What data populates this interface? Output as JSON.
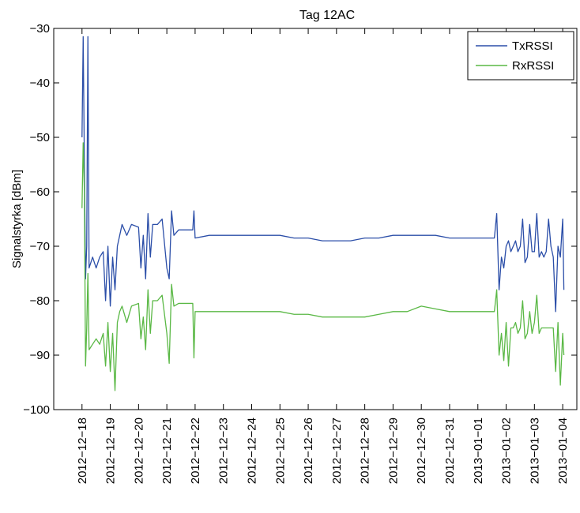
{
  "chart_data": {
    "type": "line",
    "title": "Tag 12AC",
    "xlabel": "",
    "ylabel": "Signalstyrka [dBm]",
    "ylim": [
      -100,
      -30
    ],
    "yticks": [
      -30,
      -40,
      -50,
      -60,
      -70,
      -80,
      -90,
      -100
    ],
    "ytick_labels": [
      "−30",
      "−40",
      "−50",
      "−60",
      "−70",
      "−80",
      "−90",
      "−100"
    ],
    "x_axis_type": "date",
    "xlim": [
      "2012-12-17T00:00",
      "2013-01-04T12:00"
    ],
    "xticks": [
      "2012-12-18",
      "2012-12-19",
      "2012-12-20",
      "2012-12-21",
      "2012-12-22",
      "2012-12-23",
      "2012-12-24",
      "2012-12-25",
      "2012-12-26",
      "2012-12-27",
      "2012-12-28",
      "2012-12-29",
      "2012-12-30",
      "2012-12-31",
      "2013-01-01",
      "2013-01-02",
      "2013-01-03",
      "2013-01-04"
    ],
    "xtick_labels": [
      "2012−12−18",
      "2012−12−19",
      "2012−12−20",
      "2012−12−21",
      "2012−12−22",
      "2012−12−23",
      "2012−12−24",
      "2012−12−25",
      "2012−12−26",
      "2012−12−27",
      "2012−12−28",
      "2012−12−29",
      "2012−12−30",
      "2012−12−31",
      "2013−01−01",
      "2013−01−02",
      "2013−01−03",
      "2013−01−04"
    ],
    "grid": false,
    "legend_position": "top-right",
    "series": [
      {
        "name": "TxRSSI",
        "color": "#2b4ea8",
        "points": [
          [
            "2012-12-18T00:00",
            -50
          ],
          [
            "2012-12-18T01:00",
            -31.5
          ],
          [
            "2012-12-18T02:00",
            -55
          ],
          [
            "2012-12-18T03:00",
            -76
          ],
          [
            "2012-12-18T04:00",
            -70
          ],
          [
            "2012-12-18T05:00",
            -31.5
          ],
          [
            "2012-12-18T06:00",
            -74
          ],
          [
            "2012-12-18T09:00",
            -72
          ],
          [
            "2012-12-18T12:00",
            -74
          ],
          [
            "2012-12-18T15:00",
            -72
          ],
          [
            "2012-12-18T18:00",
            -71
          ],
          [
            "2012-12-18T20:00",
            -80
          ],
          [
            "2012-12-18T22:00",
            -70
          ],
          [
            "2012-12-19T00:00",
            -81
          ],
          [
            "2012-12-19T02:00",
            -72
          ],
          [
            "2012-12-19T04:00",
            -78
          ],
          [
            "2012-12-19T06:00",
            -70
          ],
          [
            "2012-12-19T08:00",
            -68
          ],
          [
            "2012-12-19T10:00",
            -66
          ],
          [
            "2012-12-19T14:00",
            -68
          ],
          [
            "2012-12-19T18:00",
            -66
          ],
          [
            "2012-12-20T00:00",
            -66.5
          ],
          [
            "2012-12-20T02:00",
            -74
          ],
          [
            "2012-12-20T04:00",
            -68
          ],
          [
            "2012-12-20T06:00",
            -76
          ],
          [
            "2012-12-20T08:00",
            -64
          ],
          [
            "2012-12-20T10:00",
            -72
          ],
          [
            "2012-12-20T12:00",
            -66
          ],
          [
            "2012-12-20T16:00",
            -66
          ],
          [
            "2012-12-20T20:00",
            -65
          ],
          [
            "2012-12-21T00:00",
            -74
          ],
          [
            "2012-12-21T02:00",
            -76
          ],
          [
            "2012-12-21T04:00",
            -63.5
          ],
          [
            "2012-12-21T06:00",
            -68
          ],
          [
            "2012-12-21T10:00",
            -67
          ],
          [
            "2012-12-21T16:00",
            -67
          ],
          [
            "2012-12-21T22:00",
            -67
          ],
          [
            "2012-12-21T23:00",
            -63.5
          ],
          [
            "2012-12-22T00:00",
            -68.5
          ],
          [
            "2012-12-22T12:00",
            -68
          ],
          [
            "2012-12-23T00:00",
            -68
          ],
          [
            "2012-12-24T00:00",
            -68
          ],
          [
            "2012-12-25T00:00",
            -68
          ],
          [
            "2012-12-25T12:00",
            -68.5
          ],
          [
            "2012-12-26T00:00",
            -68.5
          ],
          [
            "2012-12-26T12:00",
            -69
          ],
          [
            "2012-12-27T00:00",
            -69
          ],
          [
            "2012-12-27T12:00",
            -69
          ],
          [
            "2012-12-28T00:00",
            -68.5
          ],
          [
            "2012-12-28T12:00",
            -68.5
          ],
          [
            "2012-12-29T00:00",
            -68
          ],
          [
            "2012-12-29T12:00",
            -68
          ],
          [
            "2012-12-30T00:00",
            -68
          ],
          [
            "2012-12-30T12:00",
            -68
          ],
          [
            "2012-12-31T00:00",
            -68.5
          ],
          [
            "2012-12-31T12:00",
            -68.5
          ],
          [
            "2013-01-01T00:00",
            -68.5
          ],
          [
            "2013-01-01T10:00",
            -68.5
          ],
          [
            "2013-01-01T14:00",
            -68.5
          ],
          [
            "2013-01-01T16:00",
            -64
          ],
          [
            "2013-01-01T18:00",
            -78
          ],
          [
            "2013-01-01T20:00",
            -72
          ],
          [
            "2013-01-01T22:00",
            -74
          ],
          [
            "2013-01-02T00:00",
            -70
          ],
          [
            "2013-01-02T02:00",
            -69
          ],
          [
            "2013-01-02T04:00",
            -71
          ],
          [
            "2013-01-02T06:00",
            -70
          ],
          [
            "2013-01-02T08:00",
            -69
          ],
          [
            "2013-01-02T10:00",
            -71
          ],
          [
            "2013-01-02T12:00",
            -70
          ],
          [
            "2013-01-02T14:00",
            -65
          ],
          [
            "2013-01-02T16:00",
            -73
          ],
          [
            "2013-01-02T18:00",
            -72
          ],
          [
            "2013-01-02T20:00",
            -66
          ],
          [
            "2013-01-02T22:00",
            -71
          ],
          [
            "2013-01-03T00:00",
            -71
          ],
          [
            "2013-01-03T02:00",
            -64
          ],
          [
            "2013-01-03T04:00",
            -72
          ],
          [
            "2013-01-03T06:00",
            -71
          ],
          [
            "2013-01-03T08:00",
            -72
          ],
          [
            "2013-01-03T10:00",
            -71
          ],
          [
            "2013-01-03T12:00",
            -65
          ],
          [
            "2013-01-03T14:00",
            -70
          ],
          [
            "2013-01-03T16:00",
            -72
          ],
          [
            "2013-01-03T18:00",
            -82
          ],
          [
            "2013-01-03T20:00",
            -70
          ],
          [
            "2013-01-03T22:00",
            -72
          ],
          [
            "2013-01-04T00:00",
            -65
          ],
          [
            "2013-01-04T01:00",
            -78
          ]
        ]
      },
      {
        "name": "RxRSSI",
        "color": "#5ab845",
        "points": [
          [
            "2012-12-18T00:00",
            -63
          ],
          [
            "2012-12-18T01:00",
            -51
          ],
          [
            "2012-12-18T02:00",
            -60
          ],
          [
            "2012-12-18T03:00",
            -92
          ],
          [
            "2012-12-18T04:00",
            -85
          ],
          [
            "2012-12-18T05:00",
            -75
          ],
          [
            "2012-12-18T06:00",
            -89
          ],
          [
            "2012-12-18T09:00",
            -88
          ],
          [
            "2012-12-18T12:00",
            -87
          ],
          [
            "2012-12-18T15:00",
            -88
          ],
          [
            "2012-12-18T18:00",
            -86
          ],
          [
            "2012-12-18T20:00",
            -92
          ],
          [
            "2012-12-18T22:00",
            -84
          ],
          [
            "2012-12-19T00:00",
            -93
          ],
          [
            "2012-12-19T02:00",
            -86
          ],
          [
            "2012-12-19T04:00",
            -96.5
          ],
          [
            "2012-12-19T06:00",
            -84
          ],
          [
            "2012-12-19T08:00",
            -82
          ],
          [
            "2012-12-19T10:00",
            -81
          ],
          [
            "2012-12-19T14:00",
            -84
          ],
          [
            "2012-12-19T18:00",
            -81
          ],
          [
            "2012-12-20T00:00",
            -80.5
          ],
          [
            "2012-12-20T02:00",
            -87
          ],
          [
            "2012-12-20T04:00",
            -83
          ],
          [
            "2012-12-20T06:00",
            -89
          ],
          [
            "2012-12-20T08:00",
            -78
          ],
          [
            "2012-12-20T10:00",
            -86
          ],
          [
            "2012-12-20T12:00",
            -80
          ],
          [
            "2012-12-20T16:00",
            -80
          ],
          [
            "2012-12-20T20:00",
            -79
          ],
          [
            "2012-12-21T00:00",
            -86
          ],
          [
            "2012-12-21T02:00",
            -91.5
          ],
          [
            "2012-12-21T04:00",
            -77
          ],
          [
            "2012-12-21T06:00",
            -81
          ],
          [
            "2012-12-21T10:00",
            -80.5
          ],
          [
            "2012-12-21T16:00",
            -80.5
          ],
          [
            "2012-12-21T22:00",
            -80.5
          ],
          [
            "2012-12-21T23:00",
            -90.5
          ],
          [
            "2012-12-22T00:00",
            -82
          ],
          [
            "2012-12-22T12:00",
            -82
          ],
          [
            "2012-12-23T00:00",
            -82
          ],
          [
            "2012-12-24T00:00",
            -82
          ],
          [
            "2012-12-25T00:00",
            -82
          ],
          [
            "2012-12-25T12:00",
            -82.5
          ],
          [
            "2012-12-26T00:00",
            -82.5
          ],
          [
            "2012-12-26T12:00",
            -83
          ],
          [
            "2012-12-27T00:00",
            -83
          ],
          [
            "2012-12-27T12:00",
            -83
          ],
          [
            "2012-12-28T00:00",
            -83
          ],
          [
            "2012-12-28T12:00",
            -82.5
          ],
          [
            "2012-12-29T00:00",
            -82
          ],
          [
            "2012-12-29T12:00",
            -82
          ],
          [
            "2012-12-30T00:00",
            -81
          ],
          [
            "2012-12-30T12:00",
            -81.5
          ],
          [
            "2012-12-31T00:00",
            -82
          ],
          [
            "2012-12-31T12:00",
            -82
          ],
          [
            "2013-01-01T00:00",
            -82
          ],
          [
            "2013-01-01T10:00",
            -82
          ],
          [
            "2013-01-01T14:00",
            -82
          ],
          [
            "2013-01-01T16:00",
            -78
          ],
          [
            "2013-01-01T18:00",
            -90
          ],
          [
            "2013-01-01T20:00",
            -86
          ],
          [
            "2013-01-01T22:00",
            -91
          ],
          [
            "2013-01-02T00:00",
            -84
          ],
          [
            "2013-01-02T02:00",
            -92
          ],
          [
            "2013-01-02T04:00",
            -85
          ],
          [
            "2013-01-02T06:00",
            -85
          ],
          [
            "2013-01-02T08:00",
            -84
          ],
          [
            "2013-01-02T10:00",
            -86
          ],
          [
            "2013-01-02T12:00",
            -85
          ],
          [
            "2013-01-02T14:00",
            -80
          ],
          [
            "2013-01-02T16:00",
            -87
          ],
          [
            "2013-01-02T18:00",
            -86
          ],
          [
            "2013-01-02T20:00",
            -82
          ],
          [
            "2013-01-02T22:00",
            -86
          ],
          [
            "2013-01-03T00:00",
            -84
          ],
          [
            "2013-01-03T02:00",
            -79
          ],
          [
            "2013-01-03T04:00",
            -86
          ],
          [
            "2013-01-03T06:00",
            -85
          ],
          [
            "2013-01-03T08:00",
            -85
          ],
          [
            "2013-01-03T10:00",
            -85
          ],
          [
            "2013-01-03T12:00",
            -85
          ],
          [
            "2013-01-03T14:00",
            -85
          ],
          [
            "2013-01-03T16:00",
            -85
          ],
          [
            "2013-01-03T18:00",
            -93
          ],
          [
            "2013-01-03T20:00",
            -84
          ],
          [
            "2013-01-03T22:00",
            -95.5
          ],
          [
            "2013-01-04T00:00",
            -86
          ],
          [
            "2013-01-04T01:00",
            -90
          ]
        ]
      }
    ]
  }
}
